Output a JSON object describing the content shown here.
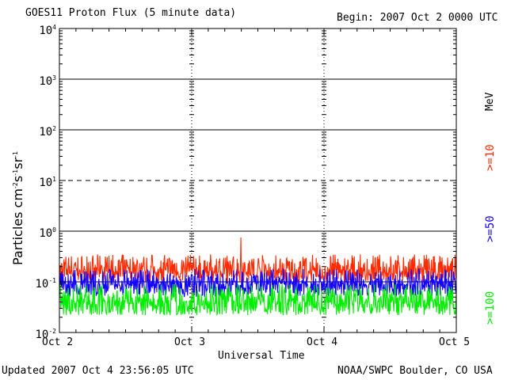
{
  "header": {
    "title": "GOES11 Proton Flux (5 minute data)",
    "begin": "Begin: 2007 Oct 2 0000 UTC"
  },
  "footer": {
    "updated": "Updated 2007 Oct  4 23:56:05 UTC",
    "credit": "NOAA/SWPC Boulder, CO USA"
  },
  "colors": {
    "ge10": "#ff2a00",
    "ge50": "#1400ff",
    "ge100": "#00ee00",
    "axis": "#000000"
  },
  "chart_data": {
    "type": "line",
    "title": "GOES11 Proton Flux (5 minute data)",
    "xlabel": "Universal Time",
    "ylabel": "Particles cm⁻² s⁻¹ sr⁻¹",
    "yscale": "log",
    "ylim": [
      0.01,
      10000
    ],
    "y_ticks": [
      {
        "exp": "-2",
        "value": 0.01
      },
      {
        "exp": "-1",
        "value": 0.1
      },
      {
        "exp": "0",
        "value": 1
      },
      {
        "exp": "1",
        "value": 10
      },
      {
        "exp": "2",
        "value": 100
      },
      {
        "exp": "3",
        "value": 1000
      },
      {
        "exp": "4",
        "value": 10000
      }
    ],
    "y_tick_base": "10",
    "x_ticks": [
      "Oct 2",
      "Oct 3",
      "Oct 4",
      "Oct 5"
    ],
    "x_range_days": [
      0,
      3
    ],
    "unit_label": "MeV",
    "series": [
      {
        "name": ">=10",
        "color": "#ff2a00",
        "baseline": 0.16,
        "typical_range": [
          0.1,
          0.35
        ],
        "peak": 0.75
      },
      {
        "name": ">=50",
        "color": "#1400ff",
        "baseline": 0.09,
        "typical_range": [
          0.05,
          0.18
        ],
        "peak": 0.2
      },
      {
        "name": ">=100",
        "color": "#00ee00",
        "baseline": 0.04,
        "typical_range": [
          0.022,
          0.09
        ],
        "peak": 0.1
      }
    ],
    "threshold_lines": [
      {
        "value": 10,
        "style": "dashed"
      },
      {
        "value": 0.1,
        "style": "solid"
      }
    ],
    "grid": true
  }
}
